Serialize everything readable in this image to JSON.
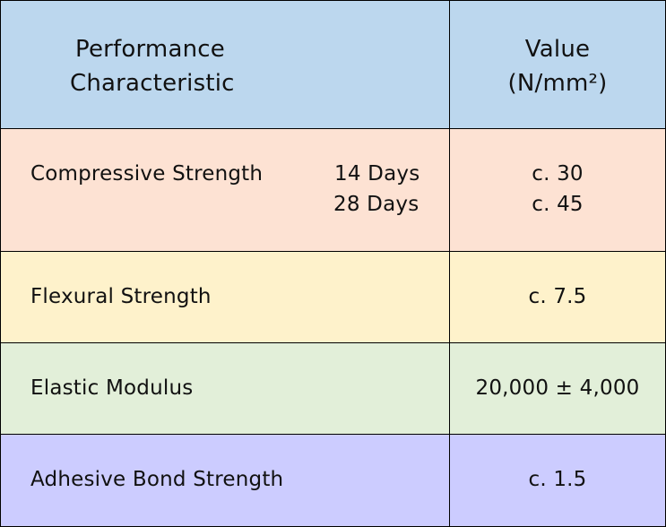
{
  "colors": {
    "header_bg": "#bcd7ee",
    "compressive_bg": "#fde2d3",
    "flexural_bg": "#fef2cb",
    "elastic_bg": "#e2efd9",
    "adhesive_bg": "#ccccff",
    "border": "#000000"
  },
  "header": {
    "characteristic_line1": "Performance",
    "characteristic_line2": "Characteristic",
    "value_line1": "Value",
    "value_line2": "(N/mm²)"
  },
  "rows": [
    {
      "label": "Compressive Strength",
      "sub": [
        "14 Days",
        "28 Days"
      ],
      "values": [
        "c. 30",
        "c. 45"
      ]
    },
    {
      "label": "Flexural Strength",
      "values": [
        "c. 7.5"
      ]
    },
    {
      "label": "Elastic Modulus",
      "values": [
        "20,000 ± 4,000"
      ]
    },
    {
      "label": "Adhesive Bond Strength",
      "values": [
        "c. 1.5"
      ]
    }
  ]
}
